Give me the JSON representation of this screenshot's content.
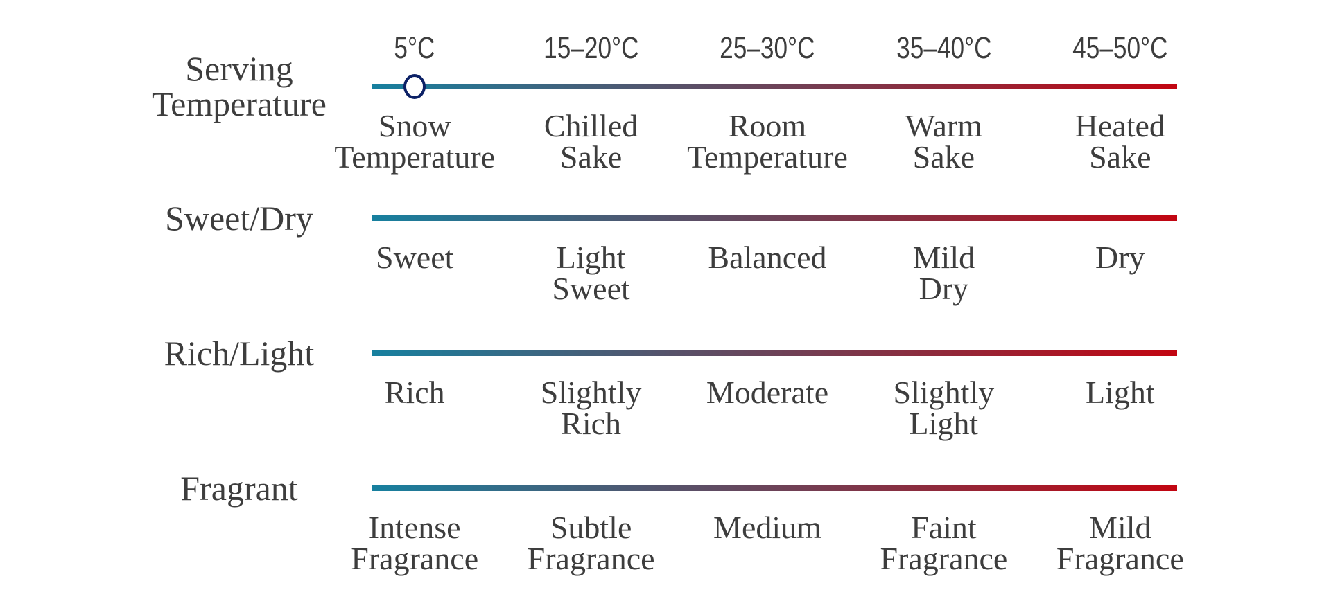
{
  "colors": {
    "gradient_start": "#17809f",
    "gradient_end": "#c20511",
    "marker_border": "#0c2166",
    "marker_fill": "#ffffff",
    "text": "#3d3d3d"
  },
  "rows": [
    {
      "label": "Serving\nTemperature",
      "ticks": [
        "5°C",
        "15–20°C",
        "25–30°C",
        "35–40°C",
        "45–50°C"
      ],
      "marker_tick_index": 0,
      "items": [
        "Snow\nTemperature",
        "Chilled\nSake",
        "Room\nTemperature",
        "Warm\nSake",
        "Heated\nSake"
      ]
    },
    {
      "label": "Sweet/Dry",
      "items": [
        "Sweet",
        "Light\nSweet",
        "Balanced",
        "Mild\nDry",
        "Dry"
      ]
    },
    {
      "label": "Rich/Light",
      "items": [
        "Rich",
        "Slightly\nRich",
        "Moderate",
        "Slightly\nLight",
        "Light"
      ]
    },
    {
      "label": "Fragrant",
      "items": [
        "Intense\nFragrance",
        "Subtle\nFragrance",
        "Medium",
        "Faint\nFragrance",
        "Mild\nFragrance"
      ]
    }
  ]
}
